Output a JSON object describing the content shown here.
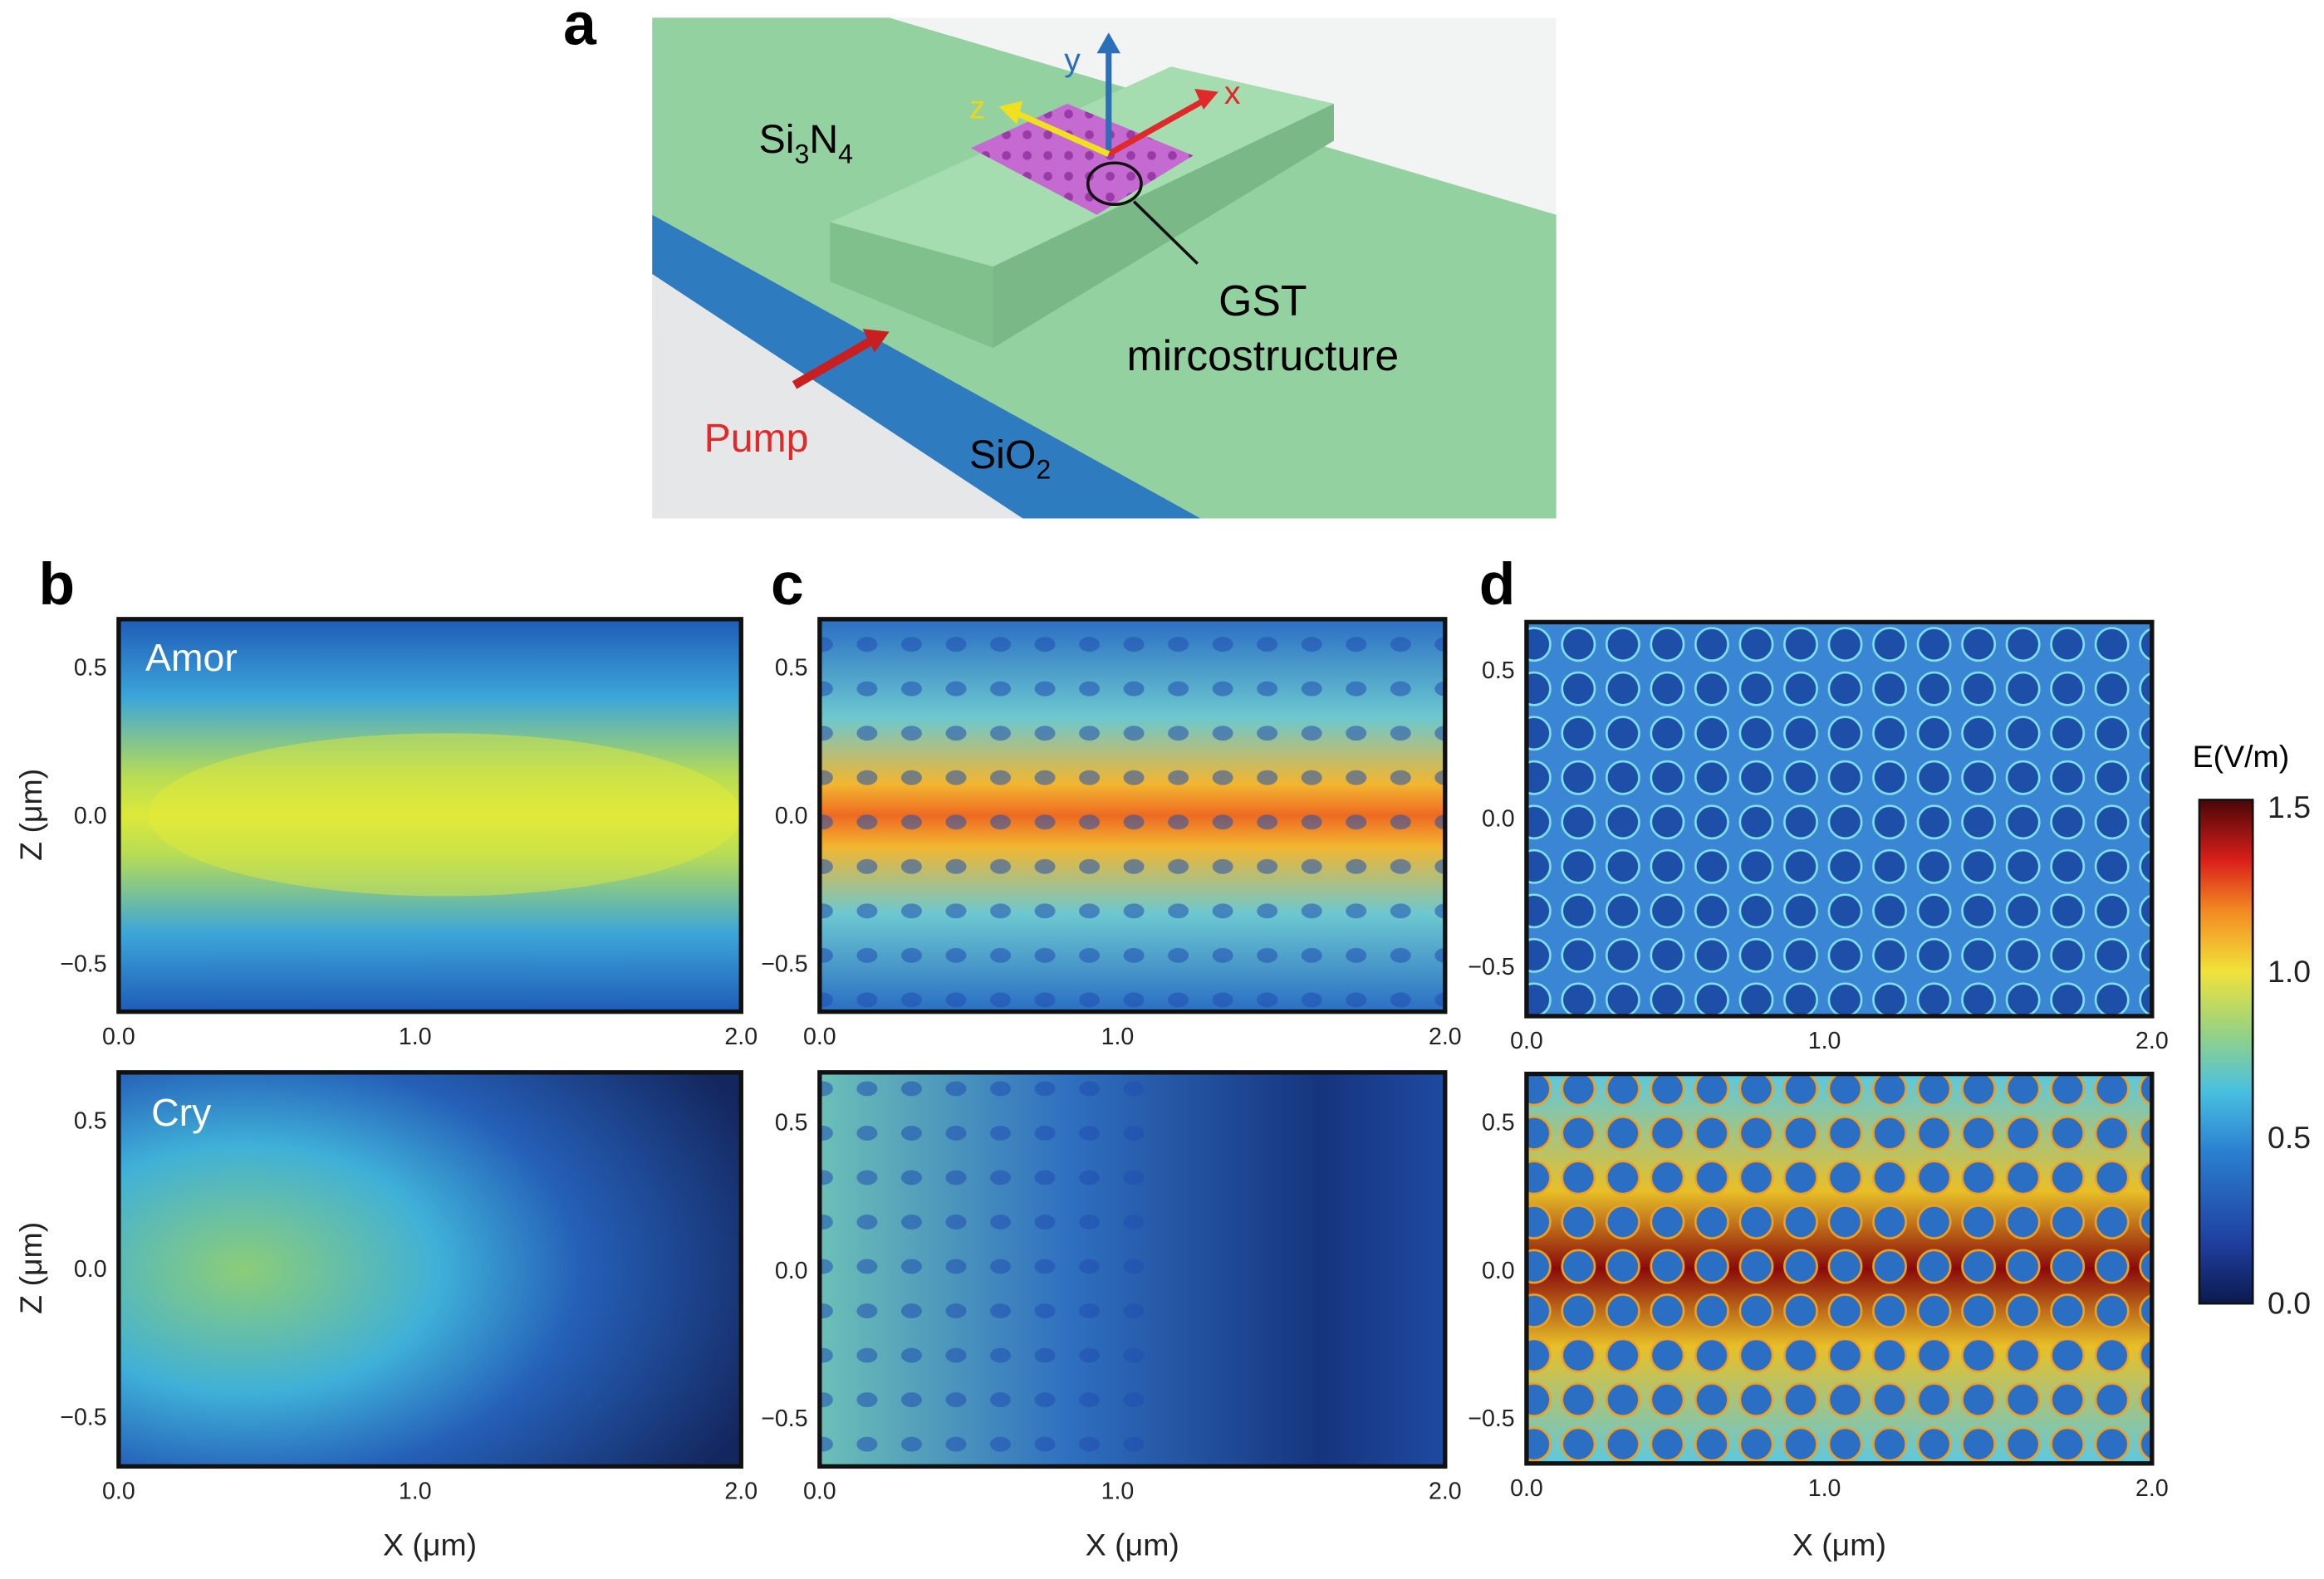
{
  "panel_a": {
    "label": "a",
    "si3n4": [
      "Si",
      "3",
      "N",
      "4"
    ],
    "sio2": [
      "SiO",
      "2"
    ],
    "axis_x": "x",
    "axis_y": "y",
    "axis_z": "z",
    "gst": "GST",
    "gst_sub": "mircostructure",
    "pump": "Pump"
  },
  "panel_b": {
    "label": "b",
    "top_state": "Amor",
    "bottom_state": "Cry"
  },
  "panel_c": {
    "label": "c"
  },
  "panel_d": {
    "label": "d"
  },
  "axes": {
    "xticks": [
      "0.0",
      "1.0",
      "2.0"
    ],
    "yticks": [
      "0.5",
      "0.0",
      "−0.5"
    ],
    "xlabel": "X (μm)",
    "ylabel": "Z (μm)"
  },
  "colorbar": {
    "title": "E(V/m)",
    "ticks": [
      "1.5",
      "1.0",
      "0.5",
      "0.0"
    ]
  }
}
